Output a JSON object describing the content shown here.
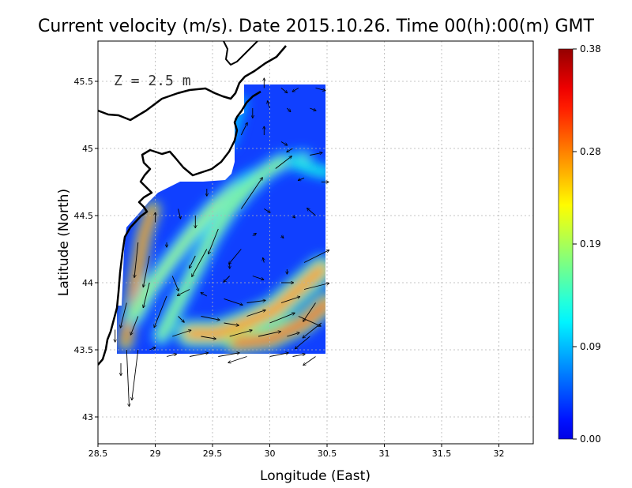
{
  "title": "Current velocity (m/s). Date 2015.10.26. Time 00(h):00(m) GMT",
  "depth_label": "Z = 2.5 m",
  "xlabel": "Longitude (East)",
  "ylabel": "Latitude (North)",
  "x_ticks": [
    "28.5",
    "29",
    "29.5",
    "30",
    "30.5",
    "31",
    "31.5",
    "32"
  ],
  "y_ticks": [
    "43",
    "43.5",
    "44",
    "44.5",
    "45",
    "45.5"
  ],
  "colorbar_ticks": [
    "0.00",
    "0.09",
    "0.19",
    "0.28",
    "0.38"
  ],
  "chart_data": {
    "type": "heatmap",
    "title": "Current velocity (m/s). Date 2015.10.26. Time 00(h):00(m) GMT",
    "xlabel": "Longitude (East)",
    "ylabel": "Latitude (North)",
    "xlim": [
      28.5,
      32.3
    ],
    "ylim": [
      42.8,
      45.8
    ],
    "x_ticks": [
      28.5,
      29,
      29.5,
      30,
      30.5,
      31,
      31.5,
      32
    ],
    "y_ticks": [
      43,
      43.5,
      44,
      44.5,
      45,
      45.5
    ],
    "grid": true,
    "colorbar": {
      "min": 0.0,
      "max": 0.38,
      "ticks": [
        0.0,
        0.09,
        0.19,
        0.28,
        0.38
      ]
    },
    "domain_lat_range": [
      43.5,
      45.5
    ],
    "domain_lon_range": [
      28.6,
      30.55
    ],
    "bands": [
      {
        "points": [
          [
            28.74,
            43.55
          ],
          [
            28.78,
            43.75
          ],
          [
            28.82,
            43.95
          ],
          [
            28.86,
            44.15
          ],
          [
            28.9,
            44.35
          ],
          [
            28.98,
            44.55
          ]
        ],
        "speed": 0.33,
        "width": 0.05
      },
      {
        "points": [
          [
            28.82,
            43.75
          ],
          [
            28.95,
            43.95
          ],
          [
            29.12,
            44.15
          ],
          [
            29.3,
            44.35
          ],
          [
            29.5,
            44.55
          ],
          [
            29.7,
            44.7
          ],
          [
            29.85,
            44.78
          ]
        ],
        "speed": 0.19,
        "width": 0.06
      },
      {
        "points": [
          [
            29.05,
            43.6
          ],
          [
            29.2,
            43.85
          ],
          [
            29.35,
            44.1
          ],
          [
            29.5,
            44.35
          ],
          [
            29.65,
            44.55
          ],
          [
            29.8,
            44.7
          ],
          [
            29.95,
            44.82
          ],
          [
            30.1,
            44.9
          ],
          [
            30.3,
            44.92
          ]
        ],
        "speed": 0.18,
        "width": 0.06
      },
      {
        "points": [
          [
            29.3,
            43.62
          ],
          [
            29.55,
            43.62
          ],
          [
            29.8,
            43.7
          ],
          [
            30.05,
            43.8
          ],
          [
            30.25,
            43.95
          ],
          [
            30.45,
            44.1
          ]
        ],
        "speed": 0.27,
        "width": 0.09
      },
      {
        "points": [
          [
            29.7,
            43.55
          ],
          [
            30.0,
            43.58
          ],
          [
            30.3,
            43.7
          ],
          [
            30.5,
            43.85
          ]
        ],
        "speed": 0.31,
        "width": 0.07
      },
      {
        "points": [
          [
            30.2,
            44.9
          ],
          [
            30.35,
            44.85
          ],
          [
            30.5,
            44.82
          ]
        ],
        "speed": 0.13,
        "width": 0.05
      },
      {
        "points": [
          [
            29.65,
            45.05
          ],
          [
            29.7,
            45.2
          ],
          [
            29.75,
            45.35
          ]
        ],
        "speed": 0.1,
        "width": 0.05
      }
    ],
    "vectors": [
      {
        "lon": 29.95,
        "lat": 45.45,
        "u": 0.0,
        "v": 0.08
      },
      {
        "lon": 30.1,
        "lat": 45.45,
        "u": 0.05,
        "v": -0.04
      },
      {
        "lon": 30.25,
        "lat": 45.45,
        "u": -0.05,
        "v": -0.03
      },
      {
        "lon": 30.4,
        "lat": 45.45,
        "u": 0.08,
        "v": -0.02
      },
      {
        "lon": 29.85,
        "lat": 45.3,
        "u": 0.0,
        "v": -0.08
      },
      {
        "lon": 30.0,
        "lat": 45.3,
        "u": -0.02,
        "v": 0.06
      },
      {
        "lon": 30.15,
        "lat": 45.3,
        "u": 0.03,
        "v": -0.03
      },
      {
        "lon": 30.35,
        "lat": 45.3,
        "u": 0.05,
        "v": -0.02
      },
      {
        "lon": 29.75,
        "lat": 45.1,
        "u": 0.05,
        "v": 0.1
      },
      {
        "lon": 29.95,
        "lat": 45.1,
        "u": 0.0,
        "v": 0.07
      },
      {
        "lon": 30.1,
        "lat": 45.05,
        "u": 0.05,
        "v": -0.03
      },
      {
        "lon": 30.2,
        "lat": 45.0,
        "u": -0.05,
        "v": -0.03
      },
      {
        "lon": 30.35,
        "lat": 44.95,
        "u": 0.1,
        "v": 0.02
      },
      {
        "lon": 30.05,
        "lat": 44.85,
        "u": 0.13,
        "v": 0.1
      },
      {
        "lon": 30.3,
        "lat": 44.78,
        "u": -0.05,
        "v": -0.02
      },
      {
        "lon": 30.45,
        "lat": 44.75,
        "u": 0.06,
        "v": 0.0
      },
      {
        "lon": 29.45,
        "lat": 44.7,
        "u": 0.0,
        "v": -0.06
      },
      {
        "lon": 29.75,
        "lat": 44.55,
        "u": 0.17,
        "v": 0.25
      },
      {
        "lon": 29.95,
        "lat": 44.55,
        "u": 0.05,
        "v": -0.03
      },
      {
        "lon": 30.2,
        "lat": 44.5,
        "u": 0.02,
        "v": -0.02
      },
      {
        "lon": 30.4,
        "lat": 44.5,
        "u": -0.07,
        "v": 0.06
      },
      {
        "lon": 29.35,
        "lat": 44.5,
        "u": 0.0,
        "v": -0.1
      },
      {
        "lon": 29.55,
        "lat": 44.4,
        "u": -0.08,
        "v": -0.2
      },
      {
        "lon": 29.85,
        "lat": 44.35,
        "u": 0.03,
        "v": 0.02
      },
      {
        "lon": 30.1,
        "lat": 44.35,
        "u": 0.02,
        "v": -0.02
      },
      {
        "lon": 30.3,
        "lat": 44.15,
        "u": 0.2,
        "v": 0.1
      },
      {
        "lon": 30.15,
        "lat": 44.1,
        "u": 0.0,
        "v": -0.04
      },
      {
        "lon": 29.95,
        "lat": 44.15,
        "u": -0.01,
        "v": 0.04
      },
      {
        "lon": 29.65,
        "lat": 44.15,
        "u": 0.0,
        "v": -0.05
      },
      {
        "lon": 29.75,
        "lat": 44.25,
        "u": -0.1,
        "v": -0.12
      },
      {
        "lon": 29.35,
        "lat": 44.2,
        "u": -0.05,
        "v": -0.1
      },
      {
        "lon": 29.1,
        "lat": 44.3,
        "u": 0.0,
        "v": -0.04
      },
      {
        "lon": 28.95,
        "lat": 44.2,
        "u": -0.05,
        "v": -0.25
      },
      {
        "lon": 29.0,
        "lat": 44.45,
        "u": 0.0,
        "v": 0.08
      },
      {
        "lon": 29.2,
        "lat": 44.55,
        "u": 0.02,
        "v": -0.08
      },
      {
        "lon": 29.45,
        "lat": 44.25,
        "u": -0.12,
        "v": -0.22
      },
      {
        "lon": 29.65,
        "lat": 44.05,
        "u": -0.05,
        "v": -0.05
      },
      {
        "lon": 29.85,
        "lat": 44.05,
        "u": 0.09,
        "v": -0.03
      },
      {
        "lon": 30.1,
        "lat": 44.0,
        "u": 0.1,
        "v": 0.0
      },
      {
        "lon": 29.3,
        "lat": 43.95,
        "u": -0.1,
        "v": -0.05
      },
      {
        "lon": 29.15,
        "lat": 44.05,
        "u": 0.05,
        "v": -0.12
      },
      {
        "lon": 28.95,
        "lat": 44.0,
        "u": -0.05,
        "v": -0.2
      },
      {
        "lon": 28.85,
        "lat": 44.3,
        "u": -0.03,
        "v": -0.28
      },
      {
        "lon": 29.45,
        "lat": 43.9,
        "u": -0.05,
        "v": 0.03
      },
      {
        "lon": 29.6,
        "lat": 43.88,
        "u": 0.15,
        "v": -0.05
      },
      {
        "lon": 29.8,
        "lat": 43.85,
        "u": 0.15,
        "v": 0.02
      },
      {
        "lon": 30.1,
        "lat": 43.85,
        "u": 0.15,
        "v": 0.05
      },
      {
        "lon": 30.3,
        "lat": 43.95,
        "u": 0.2,
        "v": 0.05
      },
      {
        "lon": 30.4,
        "lat": 43.85,
        "u": -0.1,
        "v": -0.15
      },
      {
        "lon": 29.1,
        "lat": 43.9,
        "u": -0.1,
        "v": -0.25
      },
      {
        "lon": 29.2,
        "lat": 43.75,
        "u": 0.05,
        "v": -0.05
      },
      {
        "lon": 29.4,
        "lat": 43.75,
        "u": 0.15,
        "v": -0.03
      },
      {
        "lon": 29.6,
        "lat": 43.7,
        "u": 0.12,
        "v": -0.02
      },
      {
        "lon": 29.8,
        "lat": 43.75,
        "u": 0.15,
        "v": 0.05
      },
      {
        "lon": 30.0,
        "lat": 43.7,
        "u": 0.2,
        "v": 0.08
      },
      {
        "lon": 30.25,
        "lat": 43.75,
        "u": 0.18,
        "v": -0.08
      },
      {
        "lon": 30.45,
        "lat": 43.7,
        "u": -0.15,
        "v": -0.12
      },
      {
        "lon": 28.85,
        "lat": 43.75,
        "u": -0.06,
        "v": -0.15
      },
      {
        "lon": 28.75,
        "lat": 43.85,
        "u": -0.05,
        "v": -0.2
      },
      {
        "lon": 28.65,
        "lat": 43.65,
        "u": 0.0,
        "v": -0.1
      },
      {
        "lon": 29.15,
        "lat": 43.6,
        "u": 0.15,
        "v": 0.05
      },
      {
        "lon": 29.4,
        "lat": 43.6,
        "u": 0.12,
        "v": -0.02
      },
      {
        "lon": 29.65,
        "lat": 43.6,
        "u": 0.18,
        "v": 0.05
      },
      {
        "lon": 29.9,
        "lat": 43.6,
        "u": 0.18,
        "v": 0.04
      },
      {
        "lon": 30.15,
        "lat": 43.6,
        "u": 0.1,
        "v": 0.03
      },
      {
        "lon": 30.35,
        "lat": 43.6,
        "u": -0.12,
        "v": -0.1
      },
      {
        "lon": 28.75,
        "lat": 43.5,
        "u": 0.02,
        "v": -0.45
      },
      {
        "lon": 28.85,
        "lat": 43.5,
        "u": -0.05,
        "v": -0.4
      },
      {
        "lon": 28.95,
        "lat": 43.5,
        "u": 0.05,
        "v": 0.02
      },
      {
        "lon": 29.1,
        "lat": 43.45,
        "u": 0.08,
        "v": 0.02
      },
      {
        "lon": 29.3,
        "lat": 43.45,
        "u": 0.15,
        "v": 0.03
      },
      {
        "lon": 29.55,
        "lat": 43.45,
        "u": 0.17,
        "v": 0.03
      },
      {
        "lon": 29.8,
        "lat": 43.45,
        "u": -0.15,
        "v": -0.05
      },
      {
        "lon": 30.0,
        "lat": 43.45,
        "u": 0.15,
        "v": 0.03
      },
      {
        "lon": 30.2,
        "lat": 43.45,
        "u": 0.1,
        "v": 0.02
      },
      {
        "lon": 30.4,
        "lat": 43.45,
        "u": -0.1,
        "v": -0.07
      },
      {
        "lon": 28.7,
        "lat": 43.4,
        "u": 0.0,
        "v": -0.1
      }
    ]
  },
  "colors": {
    "land": "#ffffff",
    "coast": "#000000",
    "grid": "#b4b4b4",
    "low": "#1040ff",
    "high": "#800000"
  }
}
